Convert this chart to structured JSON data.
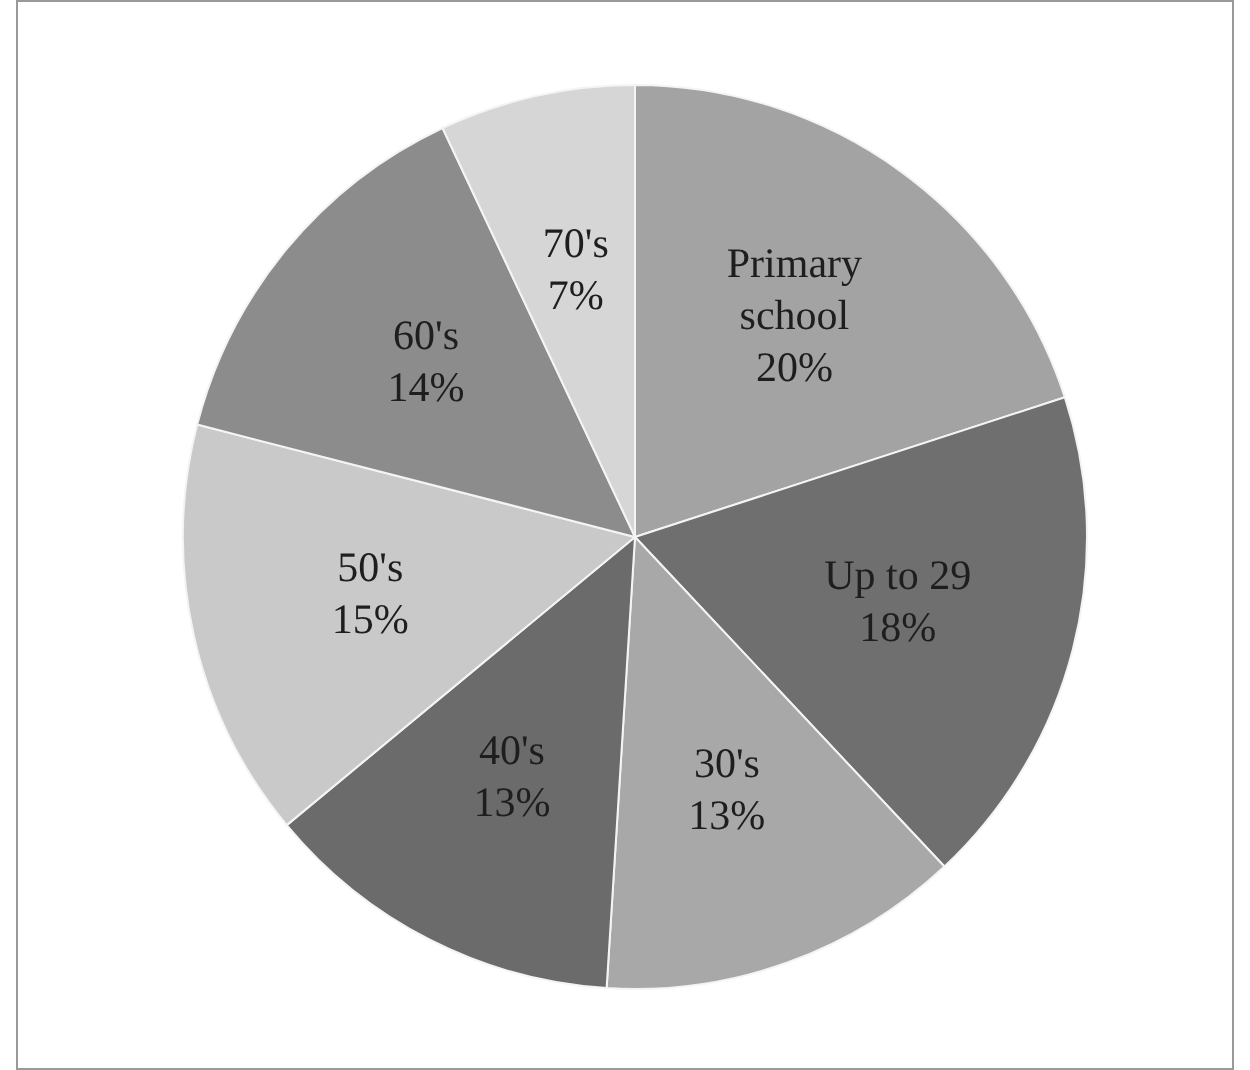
{
  "chart_data": {
    "type": "pie",
    "categories": [
      "Primary school",
      "Up to 29",
      "30's",
      "40's",
      "50's",
      "60's",
      "70's"
    ],
    "values": [
      20,
      18,
      13,
      13,
      15,
      14,
      7
    ],
    "value_labels": [
      "20%",
      "18%",
      "13%",
      "13%",
      "15%",
      "14%",
      "7%"
    ],
    "colors": [
      "#a3a3a3",
      "#6f6f6f",
      "#a8a8a8",
      "#6b6b6b",
      "#c9c9c9",
      "#8c8c8c",
      "#d6d6d6"
    ],
    "legend": false
  }
}
